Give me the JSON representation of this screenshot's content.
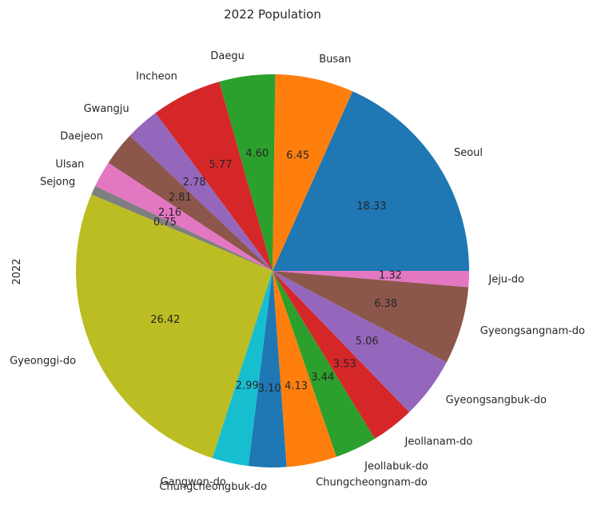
{
  "chart_data": {
    "type": "pie",
    "title": "2022 Population",
    "ylabel": "2022",
    "start_angle_deg": 0,
    "direction": "counterclockwise",
    "categories": [
      "Seoul",
      "Busan",
      "Daegu",
      "Incheon",
      "Gwangju",
      "Daejeon",
      "Ulsan",
      "Sejong",
      "Gyeonggi-do",
      "Gangwon-do",
      "Chungcheongbuk-do",
      "Chungcheongnam-do",
      "Jeollabuk-do",
      "Jeollanam-do",
      "Gyeongsangbuk-do",
      "Gyeongsangnam-do",
      "Jeju-do"
    ],
    "values": [
      18.33,
      6.45,
      4.6,
      5.77,
      2.78,
      2.81,
      2.16,
      0.75,
      26.42,
      2.99,
      3.1,
      4.13,
      3.44,
      3.53,
      5.06,
      6.38,
      1.32
    ],
    "value_labels": [
      "18.33",
      "6.45",
      "4.60",
      "5.77",
      "2.78",
      "2.81",
      "2.16",
      "0.75",
      "26.42",
      "2.99",
      "3.10",
      "4.13",
      "3.44",
      "3.53",
      "5.06",
      "6.38",
      "1.32"
    ],
    "colors": [
      "#1f77b4",
      "#ff7f0e",
      "#2ca02c",
      "#d62728",
      "#9467bd",
      "#8c564b",
      "#e377c2",
      "#7f7f7f",
      "#bcbd22",
      "#17becf",
      "#1f77b4",
      "#ff7f0e",
      "#2ca02c",
      "#d62728",
      "#9467bd",
      "#8c564b",
      "#e377c2"
    ]
  }
}
